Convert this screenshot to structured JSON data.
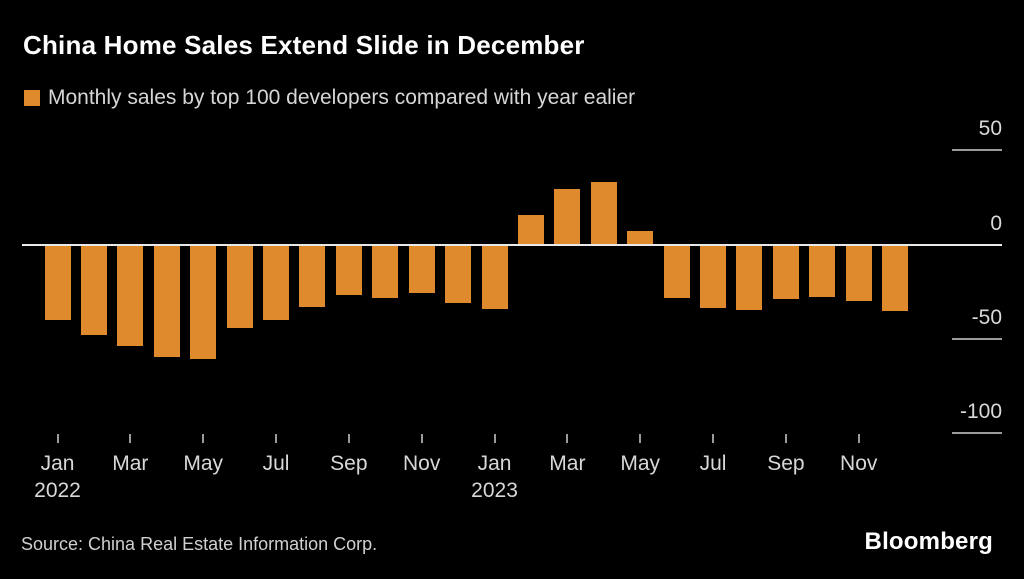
{
  "title": "China Home Sales Extend Slide in December",
  "legend": {
    "label": "Monthly sales by top 100 developers compared with year ealier"
  },
  "source": "Source: China Real Estate Information Corp.",
  "brand": "Bloomberg",
  "colors": {
    "background": "#000000",
    "bar": "#DF8B2D",
    "zero_line": "#E9E9E9",
    "tick_line": "#9B9B9B",
    "title_text": "#FFFFFF",
    "label_text": "#D8D8D8"
  },
  "chart_data": {
    "type": "bar",
    "title": "China Home Sales Extend Slide in December",
    "subtitle": "Monthly sales by top 100 developers compared with year ealier",
    "xlabel": "",
    "ylabel": "",
    "ylim": [
      -110,
      55
    ],
    "grid": "off",
    "legend_position": "top-left",
    "bar_color": "#DF8B2D",
    "categories": [
      "Jan 2022",
      "Feb 2022",
      "Mar 2022",
      "Apr 2022",
      "May 2022",
      "Jun 2022",
      "Jul 2022",
      "Aug 2022",
      "Sep 2022",
      "Oct 2022",
      "Nov 2022",
      "Dec 2022",
      "Jan 2023",
      "Feb 2023",
      "Mar 2023",
      "Apr 2023",
      "May 2023",
      "Jun 2023",
      "Jul 2023",
      "Aug 2023",
      "Sep 2023",
      "Oct 2023",
      "Nov 2023",
      "Dec 2023"
    ],
    "values": [
      -40,
      -48,
      -54,
      -59.5,
      -60.5,
      -44.5,
      -40,
      -33,
      -26.5,
      -28.5,
      -25.5,
      -31,
      -34,
      15.5,
      29.5,
      33,
      7,
      -28.5,
      -33.5,
      -34.5,
      -29,
      -28,
      -30,
      -35
    ],
    "y_ticks": [
      {
        "value": 50,
        "label": "50"
      },
      {
        "value": 0,
        "label": "0"
      },
      {
        "value": -50,
        "label": "-50"
      },
      {
        "value": -100,
        "label": "-100"
      }
    ],
    "x_ticks": [
      {
        "bar_index": 0,
        "month": "Jan",
        "year": "2022"
      },
      {
        "bar_index": 2,
        "month": "Mar"
      },
      {
        "bar_index": 4,
        "month": "May"
      },
      {
        "bar_index": 6,
        "month": "Jul"
      },
      {
        "bar_index": 8,
        "month": "Sep"
      },
      {
        "bar_index": 10,
        "month": "Nov"
      },
      {
        "bar_index": 12,
        "month": "Jan",
        "year": "2023"
      },
      {
        "bar_index": 14,
        "month": "Mar"
      },
      {
        "bar_index": 16,
        "month": "May"
      },
      {
        "bar_index": 18,
        "month": "Jul"
      },
      {
        "bar_index": 20,
        "month": "Sep"
      },
      {
        "bar_index": 22,
        "month": "Nov"
      }
    ]
  }
}
